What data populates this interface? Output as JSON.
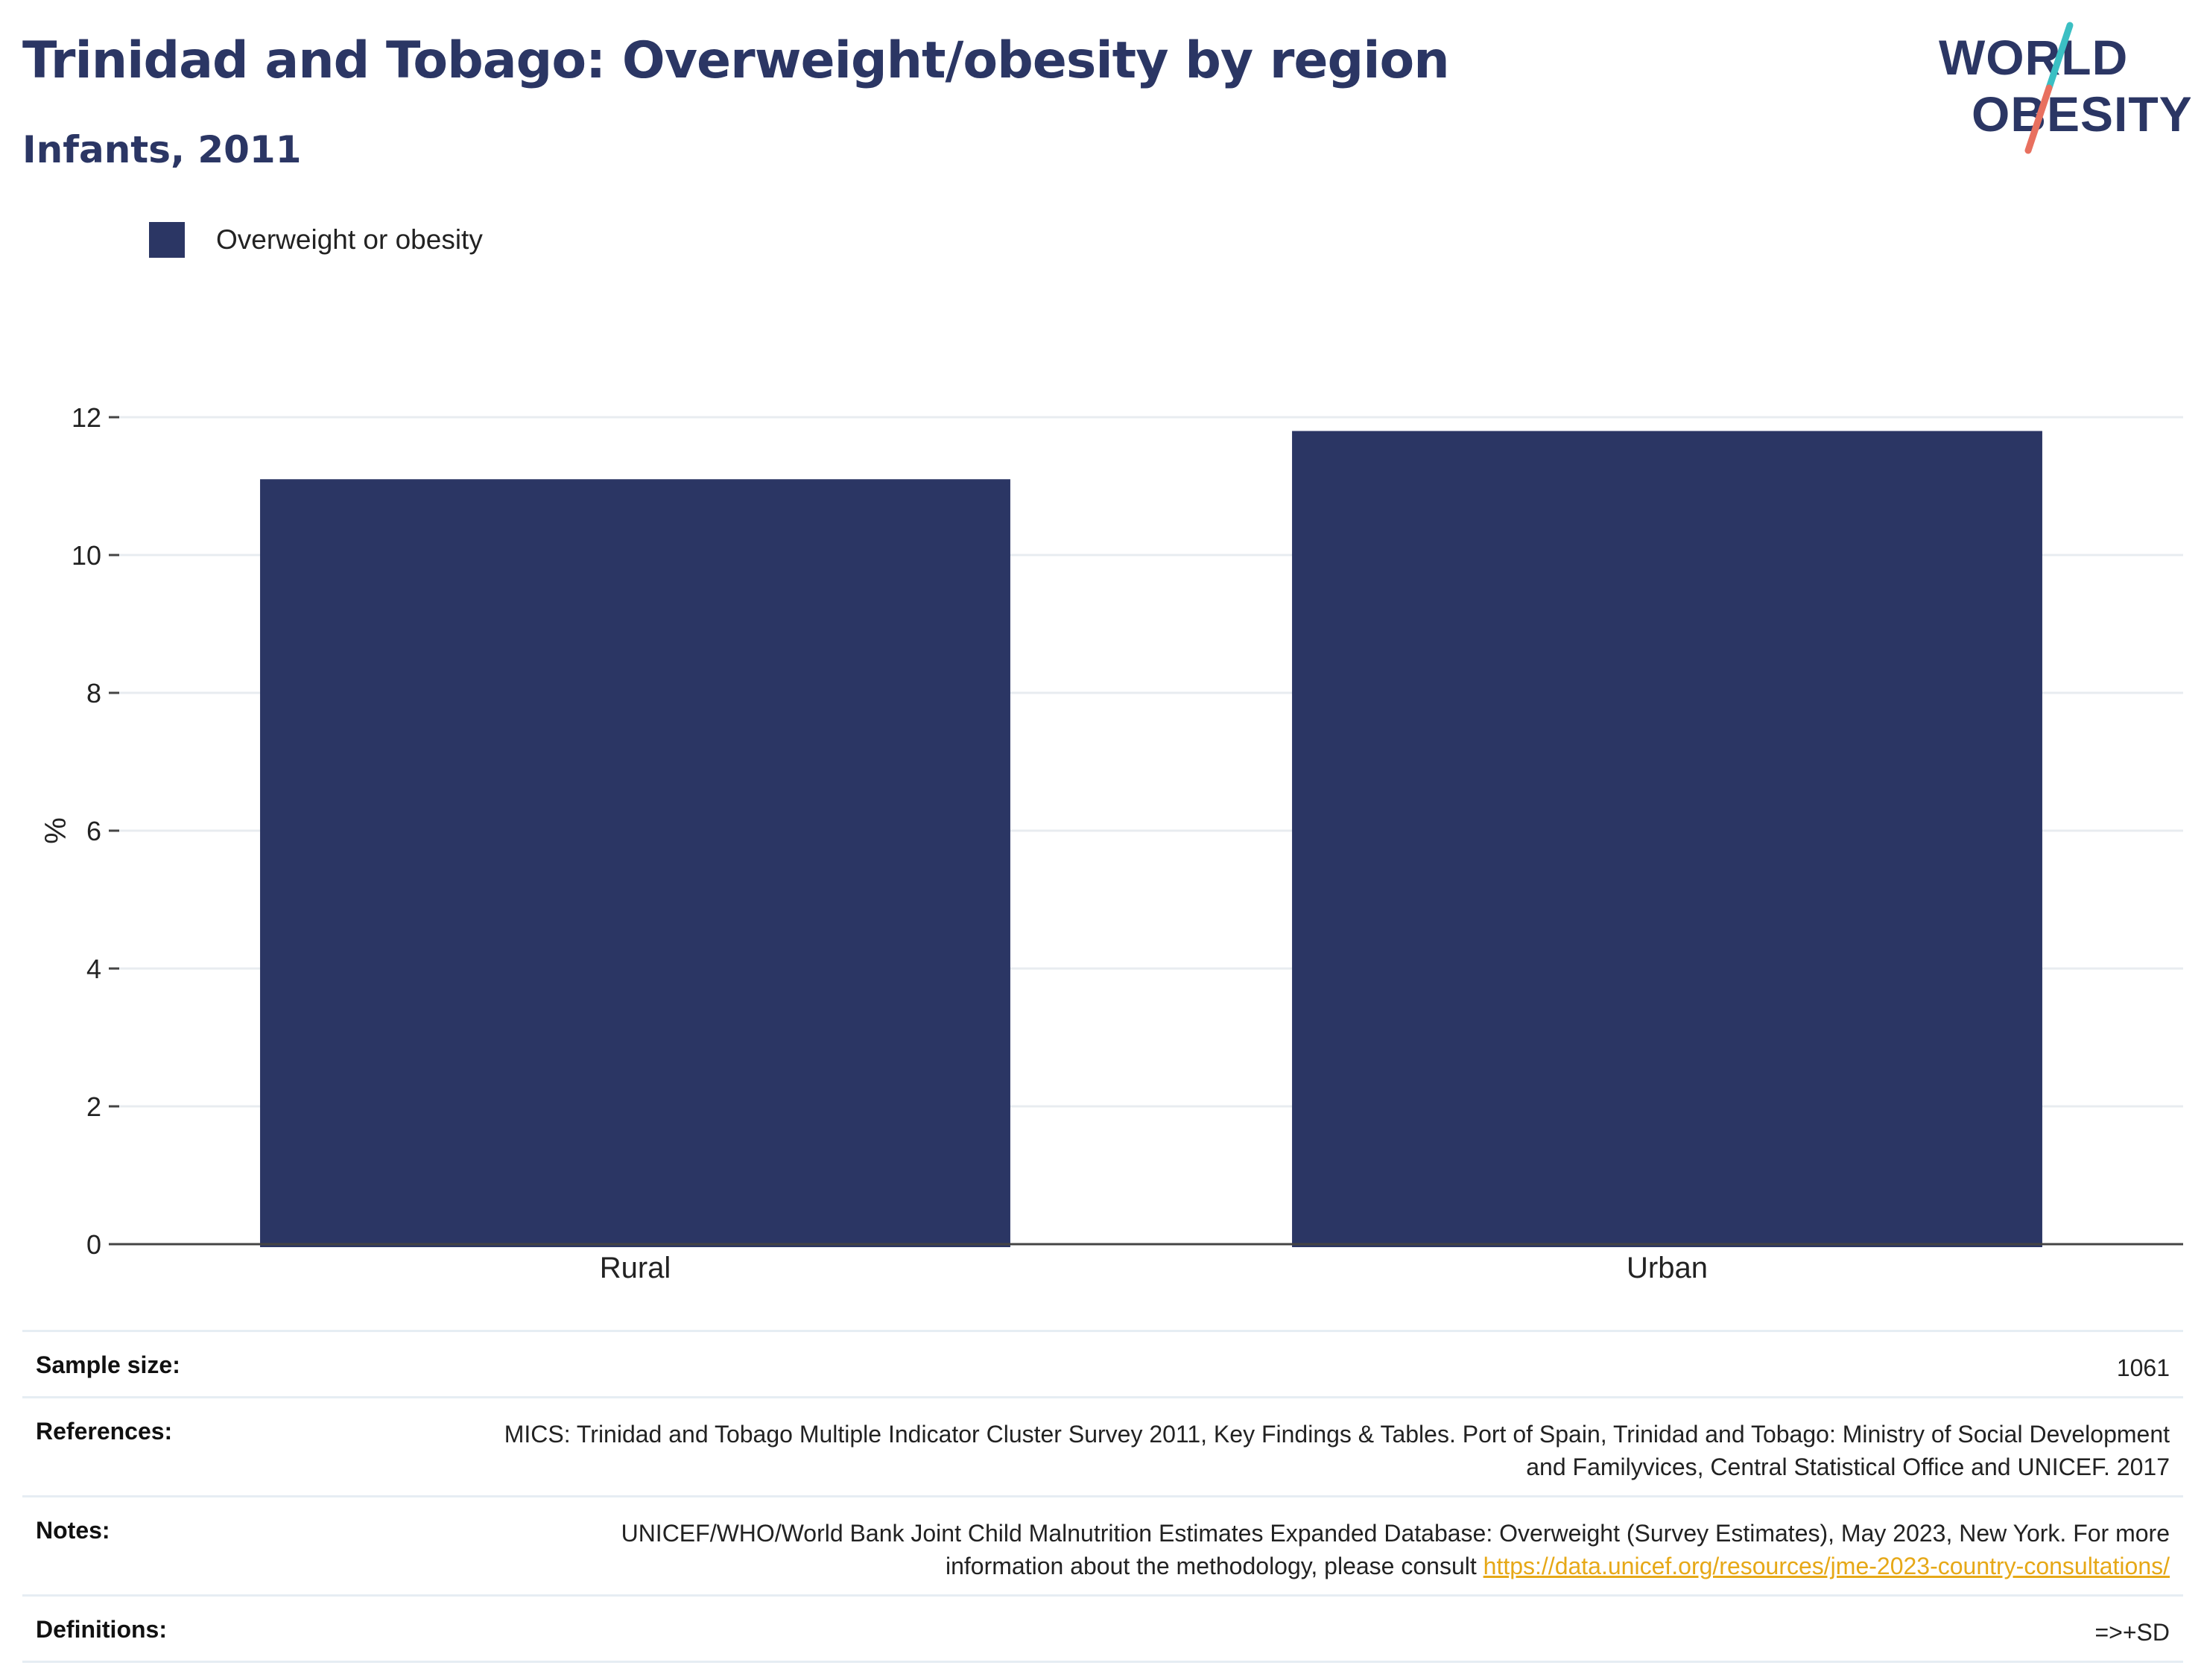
{
  "header": {
    "title": "Trinidad and Tobago: Overweight/obesity by region",
    "subtitle": "Infants, 2011"
  },
  "logo": {
    "line1": "WORLD",
    "line2": "OBESITY",
    "colors": {
      "text": "#2b3664",
      "slash_top": "#3bbfc3",
      "slash_bottom": "#e8705f"
    }
  },
  "legend": {
    "label": "Overweight or obesity",
    "color": "#2b3664"
  },
  "chart_data": {
    "type": "bar",
    "title": "Trinidad and Tobago: Overweight/obesity by region",
    "subtitle": "Infants, 2011",
    "categories": [
      "Rural",
      "Urban"
    ],
    "series": [
      {
        "name": "Overweight or obesity",
        "values": [
          11.1,
          11.8
        ],
        "color": "#2b3664"
      }
    ],
    "xlabel": "",
    "ylabel": "%",
    "ylim": [
      0,
      12
    ],
    "yticks": [
      0,
      2,
      4,
      6,
      8,
      10,
      12
    ],
    "grid": true,
    "legend_position": "top-left"
  },
  "info": [
    {
      "key": "Sample size:",
      "value": "1061"
    },
    {
      "key": "References:",
      "value": "MICS: Trinidad and Tobago Multiple Indicator Cluster Survey 2011, Key Findings & Tables. Port of Spain, Trinidad and Tobago: Ministry of Social Development and Familyvices, Central Statistical Office and UNICEF. 2017"
    },
    {
      "key": "Notes:",
      "value": "UNICEF/WHO/World Bank Joint Child Malnutrition Estimates Expanded Database: Overweight (Survey Estimates), May 2023, New York. For more information about the methodology, please consult ",
      "link": "https://data.unicef.org/resources/jme-2023-country-consultations/"
    },
    {
      "key": "Definitions:",
      "value": "=>+SD"
    }
  ]
}
